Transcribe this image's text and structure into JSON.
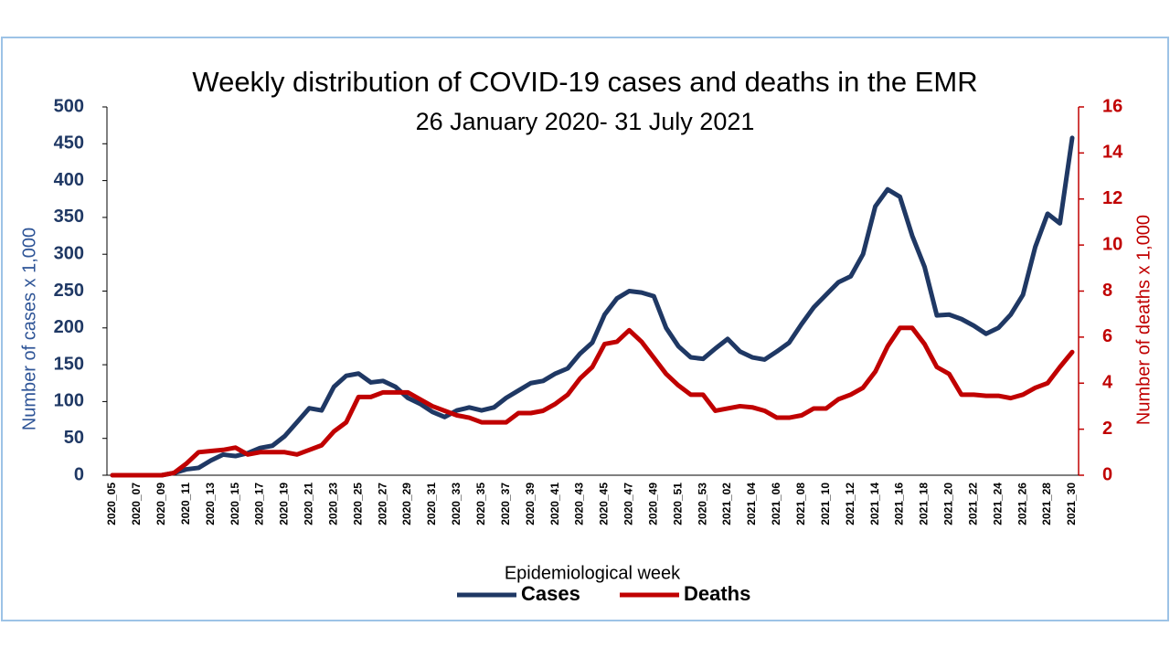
{
  "chart_data": {
    "type": "line",
    "title": "Weekly distribution of COVID-19 cases and deaths in the EMR",
    "subtitle": "26 January 2020- 31 July 2021",
    "x_label": "Epidemiological week",
    "y_label": "Number of cases x 1,000",
    "y2_label": "Number of deaths x 1,000",
    "categories": [
      "2020_05",
      null,
      "2020_07",
      null,
      "2020_09",
      null,
      "2020_11",
      null,
      "2020_13",
      null,
      "2020_15",
      null,
      "2020_17",
      null,
      "2020_19",
      null,
      "2020_21",
      null,
      "2020_23",
      null,
      "2020_25",
      null,
      "2020_27",
      null,
      "2020_29",
      null,
      "2020_31",
      null,
      "2020_33",
      null,
      "2020_35",
      null,
      "2020_37",
      null,
      "2020_39",
      null,
      "2020_41",
      null,
      "2020_43",
      null,
      "2020_45",
      null,
      "2020_47",
      null,
      "2020_49",
      null,
      "2020_51",
      null,
      "2020_53",
      null,
      "2021_02",
      null,
      "2021_04",
      null,
      "2021_06",
      null,
      "2021_08",
      null,
      "2021_10",
      null,
      "2021_12",
      null,
      "2021_14",
      null,
      "2021_16",
      null,
      "2021_18",
      null,
      "2021_20",
      null,
      "2021_22",
      null,
      "2021_24",
      null,
      "2021_26",
      null,
      "2021_28",
      null,
      "2021_30"
    ],
    "series": [
      {
        "name": "Cases",
        "color": "#1f3864",
        "axis": "y",
        "values": [
          0,
          0,
          0,
          0,
          0,
          3,
          8,
          10,
          20,
          28,
          26,
          30,
          37,
          40,
          53,
          72,
          91,
          88,
          120,
          135,
          138,
          126,
          128,
          120,
          105,
          97,
          86,
          79,
          88,
          92,
          88,
          92,
          105,
          115,
          125,
          128,
          138,
          145,
          165,
          180,
          218,
          240,
          250,
          248,
          243,
          200,
          175,
          160,
          158,
          172,
          185,
          168,
          160,
          157,
          168,
          180,
          205,
          228,
          245,
          262,
          270,
          300,
          365,
          388,
          378,
          325,
          283,
          217,
          218,
          212,
          203,
          192,
          200,
          218,
          245,
          310,
          355,
          342,
          458
        ]
      },
      {
        "name": "Deaths",
        "color": "#c00000",
        "axis": "y2",
        "values": [
          0,
          0,
          0,
          0,
          0,
          0.1,
          0.5,
          1.0,
          1.05,
          1.1,
          1.2,
          0.9,
          1.0,
          1.0,
          1.0,
          0.9,
          1.1,
          1.3,
          1.9,
          2.3,
          3.4,
          3.4,
          3.6,
          3.6,
          3.6,
          3.3,
          3.0,
          2.8,
          2.6,
          2.5,
          2.3,
          2.3,
          2.3,
          2.7,
          2.7,
          2.8,
          3.1,
          3.5,
          4.2,
          4.7,
          5.7,
          5.8,
          6.3,
          5.8,
          5.1,
          4.4,
          3.9,
          3.5,
          3.5,
          2.8,
          2.9,
          3.0,
          2.95,
          2.8,
          2.5,
          2.5,
          2.6,
          2.9,
          2.9,
          3.3,
          3.5,
          3.8,
          4.5,
          5.6,
          6.4,
          6.4,
          5.7,
          4.7,
          4.4,
          3.5,
          3.5,
          3.45,
          3.45,
          3.35,
          3.5,
          3.8,
          4.0,
          4.7,
          5.35
        ]
      }
    ],
    "ylim": [
      0,
      500
    ],
    "yticks": [
      0,
      50,
      100,
      150,
      200,
      250,
      300,
      350,
      400,
      450,
      500
    ],
    "y2lim": [
      0,
      16
    ],
    "y2ticks": [
      0,
      2,
      4,
      6,
      8,
      10,
      12,
      14,
      16
    ],
    "grid": false,
    "legend": "bottom"
  }
}
